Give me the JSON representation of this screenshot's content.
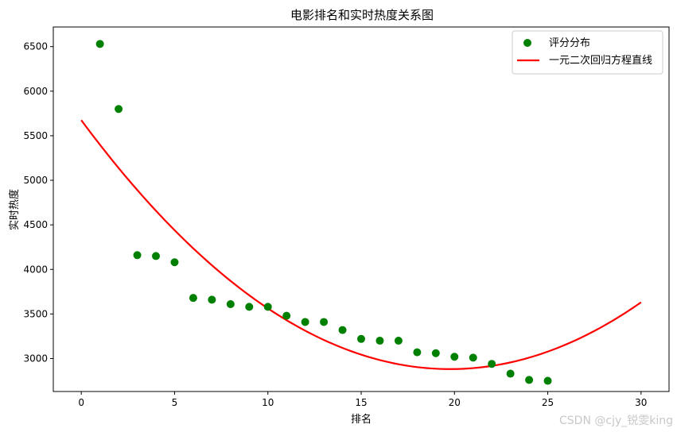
{
  "chart_data": {
    "type": "scatter",
    "title": "电影排名和实时热度关系图",
    "xlabel": "排名",
    "ylabel": "实时热度",
    "xlim": [
      -1.5,
      31.5
    ],
    "ylim": [
      2630,
      6720
    ],
    "xticks": [
      0,
      5,
      10,
      15,
      20,
      25,
      30
    ],
    "yticks": [
      3000,
      3500,
      4000,
      4500,
      5000,
      5500,
      6000,
      6500
    ],
    "grid": false,
    "legend_position": "top-right",
    "series": [
      {
        "name": "评分分布",
        "kind": "scatter",
        "color": "#008000",
        "x": [
          1,
          2,
          3,
          4,
          5,
          6,
          7,
          8,
          9,
          10,
          11,
          12,
          13,
          14,
          15,
          16,
          17,
          18,
          19,
          20,
          21,
          22,
          23,
          24,
          25
        ],
        "y": [
          6530,
          5800,
          4160,
          4150,
          4080,
          3680,
          3660,
          3610,
          3580,
          3580,
          3480,
          3410,
          3410,
          3320,
          3220,
          3200,
          3200,
          3070,
          3060,
          3020,
          3010,
          2940,
          2830,
          2760,
          2750
        ]
      },
      {
        "name": "一元二次回归方程直线",
        "kind": "line",
        "color": "#ff0000",
        "x": [
          0,
          30
        ],
        "y": [
          5680,
          3620
        ]
      }
    ]
  },
  "watermark": "CSDN @cjy_锐雯king"
}
